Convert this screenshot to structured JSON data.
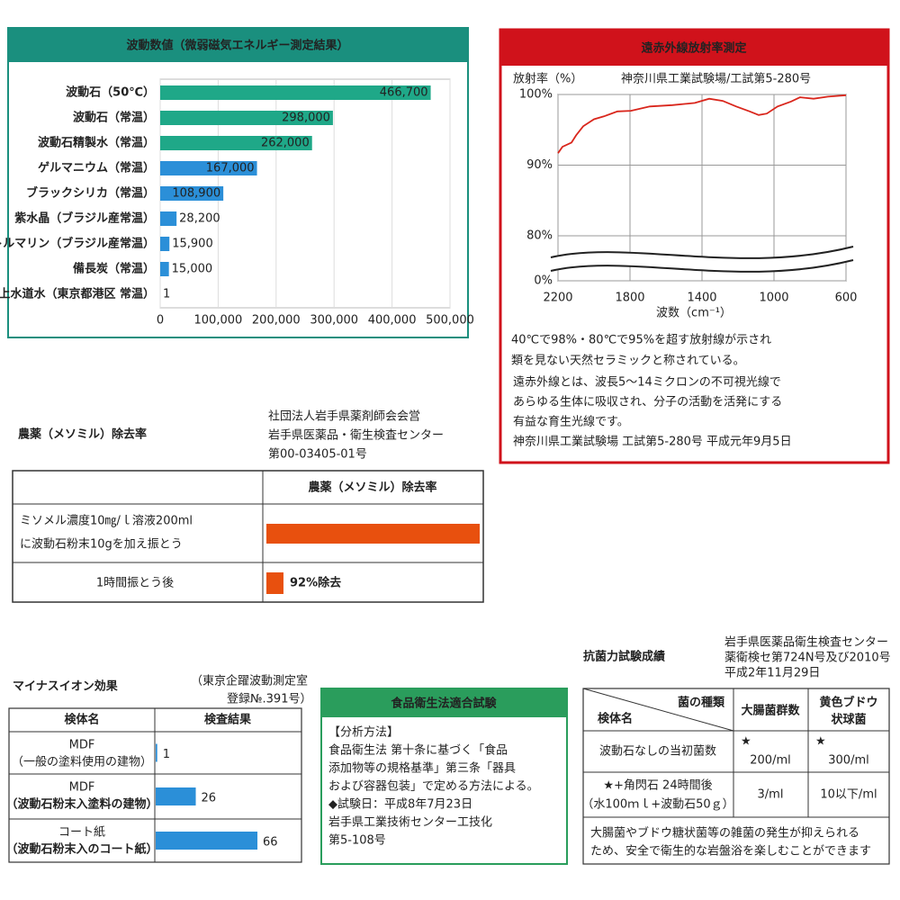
{
  "chart_data": [
    {
      "type": "bar",
      "orientation": "horizontal",
      "title": "波動数値（微弱磁気エネルギー測定結果）",
      "color": "#1a8f7e",
      "categories": [
        "波動石（50℃）",
        "波動石（常温）",
        "波動石精製水（常温）",
        "ゲルマニウム（常温）",
        "ブラックシリカ（常温）",
        "紫水晶（ブラジル産常温）",
        "トルマリン（ブラジル産常温）",
        "備長炭（常温）",
        "上水道水（東京都港区 常温）"
      ],
      "label_colors": [
        "#1a8f7e",
        "#1a8f7e",
        "#1a8f7e",
        "#222",
        "#222",
        "#222",
        "#222",
        "#222",
        "#222"
      ],
      "colors": [
        "#1fa888",
        "#1fa888",
        "#1fa888",
        "#2b8fd8",
        "#2b8fd8",
        "#2b8fd8",
        "#2b8fd8",
        "#2b8fd8",
        "#2b8fd8"
      ],
      "values": [
        466700,
        298000,
        262000,
        167000,
        108900,
        28200,
        15900,
        15000,
        1
      ],
      "value_labels": [
        "466,700",
        "298,000",
        "262,000",
        "167,000",
        "108,900",
        "28,200",
        "15,900",
        "15,000",
        "1"
      ],
      "xlim": [
        0,
        500000
      ],
      "xticks": [
        0,
        {
          "value": 100000,
          "label": "100,000"
        },
        {
          "value": 200000,
          "label": "200,000"
        },
        {
          "value": 300000,
          "label": "300,000"
        },
        {
          "value": 400000,
          "label": "400,000"
        },
        {
          "value": 500000,
          "label": "500,000"
        }
      ],
      "grid": true
    },
    {
      "type": "line",
      "title": "遠赤外線放射率測定",
      "frame_color": "#d0121b",
      "color": "#d9261c",
      "ylabel": "放射率（%）",
      "source": "神奈川県工業試験場/工試第5-280号",
      "xlabel": "波数（cm⁻¹）",
      "x": [
        2200,
        2175,
        2125,
        2100,
        2060,
        2000,
        1945,
        1870,
        1795,
        1690,
        1565,
        1440,
        1360,
        1285,
        1210,
        1135,
        1085,
        1040,
        980,
        905,
        855,
        780,
        700,
        600
      ],
      "values": [
        91.7,
        92.6,
        93.2,
        94.2,
        95.5,
        96.5,
        96.9,
        97.6,
        97.7,
        98.3,
        98.5,
        98.8,
        99.4,
        99.1,
        98.3,
        97.6,
        97.1,
        97.3,
        98.3,
        99.0,
        99.6,
        99.4,
        99.7,
        99.9
      ],
      "xlim": [
        2200,
        600
      ],
      "xticks": [
        2200,
        1800,
        1400,
        1000,
        600
      ],
      "ylim": [
        0,
        100
      ],
      "y_break": [
        0,
        80
      ],
      "yticks": [
        {
          "value": 0,
          "label": "0%"
        },
        {
          "value": 80,
          "label": "80%"
        },
        {
          "value": 90,
          "label": "90%"
        },
        {
          "value": 100,
          "label": "100%"
        }
      ],
      "grid": true,
      "highlight": [
        "40℃で98%・80℃で95%を超す放射線が示され",
        "類を見ない天然セラミックと称されている。"
      ],
      "notes": [
        "遠赤外線とは、波長5～14ミクロンの不可視光線で",
        "あらゆる生体に吸収され、分子の活動を活発にする",
        "有益な育生光線です。",
        "神奈川県工業試験場 工試第5-280号 平成元年9月5日"
      ]
    },
    {
      "type": "bar",
      "orientation": "horizontal",
      "title": "農薬（メソミル）除去率",
      "color": "#e8500e",
      "source": [
        "社団法人岩手県薬剤師会会営",
        "岩手県医薬品・衛生検査センター",
        "第00-03405-01号"
      ],
      "column_header": "農薬（メソミル）除去率",
      "categories": [
        [
          "ミソメル濃度10㎎/ｌ溶液200ml",
          "に波動石粉末10gを加え振とう"
        ],
        [
          "1時間振とう後"
        ]
      ],
      "values": [
        100,
        8
      ],
      "xlim": [
        0,
        100
      ],
      "annotation": "92%除去"
    },
    {
      "type": "bar",
      "orientation": "horizontal",
      "title": "マイナスイオン効果",
      "color": "#2b8fd8",
      "source": [
        "（東京企躍波動測定室",
        "登録№.391号）"
      ],
      "column_headers": [
        "検体名",
        "検査結果"
      ],
      "categories": [
        [
          "MDF",
          "（一般の塗料使用の建物）"
        ],
        [
          "MDF",
          "（波動石粉末入塗料の建物）"
        ],
        [
          "コート紙",
          "（波動石粉末入のコート紙）"
        ]
      ],
      "label_colors": [
        "#222",
        "#1a75c9",
        "#1a75c9"
      ],
      "values": [
        1,
        26,
        66
      ],
      "xlim": [
        0,
        80
      ]
    }
  ],
  "food_hygiene": {
    "title": "食品衛生法適合試験",
    "lines": [
      "【分析方法】",
      "食品衛生法 第十条に基づく「食品",
      "添加物等の規格基準」第三条「器具",
      "および容器包装」で定める方法による。",
      "◆試験日：平成8年7月23日",
      "岩手県工業技術センター工技化",
      "第5-108号"
    ]
  },
  "antibacterial": {
    "title": "抗菌力試験成績",
    "source": [
      "岩手県医薬品衛生検査センター",
      "薬衛検セ第724N号及び2010号",
      "平成2年11月29日"
    ],
    "col_label": "菌の種類",
    "row_label": "検体名",
    "columns": [
      [
        "大腸菌群数"
      ],
      [
        "黄色ブドウ",
        "状球菌"
      ]
    ],
    "rows": [
      {
        "label": [
          "波動石なしの当初菌数"
        ],
        "cells": [
          [
            "★",
            "200/ml"
          ],
          [
            "★",
            "300/ml"
          ]
        ]
      },
      {
        "label": [
          "★+角閃石 24時間後",
          "（水100ｍｌ+波動石50ｇ）"
        ],
        "cells": [
          [
            "3/ml"
          ],
          [
            "10以下/ml"
          ]
        ]
      }
    ],
    "footer": [
      "大腸菌やブドウ糖状菌等の雑菌の発生が抑えられる",
      "ため、安全で衛生的な岩盤浴を楽しむことができます"
    ]
  }
}
